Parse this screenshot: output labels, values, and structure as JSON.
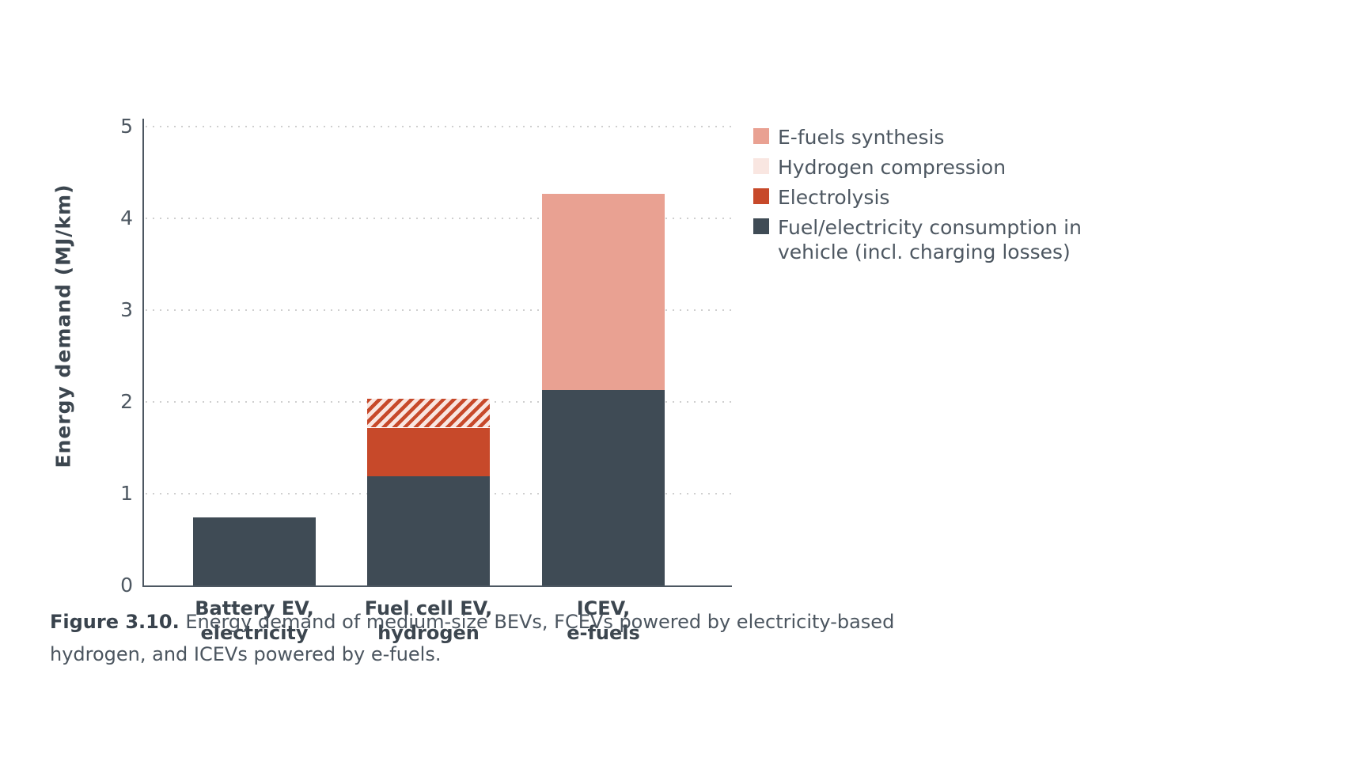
{
  "figure": {
    "caption_prefix": "Figure 3.10.",
    "caption_line1": "Energy demand of medium-size BEVs, FCEVs powered by electricity-based",
    "caption_line2": "hydrogen, and ICEVs powered by e-fuels."
  },
  "colors": {
    "dark_slate": "#3f4b55",
    "red": "#c7492a",
    "salmon": "#e9a192",
    "light_pink": "#f9e6e1",
    "axis": "#4d5761",
    "grid_dots": "#cfcfcf",
    "text": "#4d5761"
  },
  "chart_data": {
    "type": "bar",
    "stacked": true,
    "title": "",
    "xlabel": "",
    "ylabel": "Energy demand (MJ/km)",
    "ylim": [
      0,
      5
    ],
    "yticks": [
      0,
      1,
      2,
      3,
      4,
      5
    ],
    "grid": "horizontal-dotted",
    "legend_position": "right",
    "categories": [
      [
        "Battery EV,",
        "electricity"
      ],
      [
        "Fuel cell EV,",
        "hydrogen"
      ],
      [
        "ICEV,",
        "e-fuels"
      ]
    ],
    "series": [
      {
        "name": "Fuel/electricity consumption in vehicle (incl. charging losses)",
        "color": "#3f4b55",
        "values": [
          0.74,
          1.19,
          2.13
        ]
      },
      {
        "name": "Electrolysis",
        "color": "#c7492a",
        "values": [
          0,
          0.53,
          0
        ]
      },
      {
        "name": "Hydrogen compression",
        "color": "#f9e6e1",
        "pattern": "diagonal-stripes",
        "pattern_color": "#c7492a",
        "values": [
          0,
          0.31,
          0
        ]
      },
      {
        "name": "E-fuels synthesis",
        "color": "#e9a192",
        "values": [
          0,
          0,
          2.14
        ]
      }
    ],
    "totals": [
      0.74,
      2.03,
      4.27
    ],
    "legend": [
      {
        "label_lines": [
          "E-fuels synthesis"
        ],
        "swatch": "#e9a192"
      },
      {
        "label_lines": [
          "Hydrogen compression"
        ],
        "swatch": "#f9e6e1"
      },
      {
        "label_lines": [
          "Electrolysis"
        ],
        "swatch": "#c7492a"
      },
      {
        "label_lines": [
          "Fuel/electricity consumption in",
          "vehicle (incl. charging losses)"
        ],
        "swatch": "#3f4b55"
      }
    ]
  }
}
